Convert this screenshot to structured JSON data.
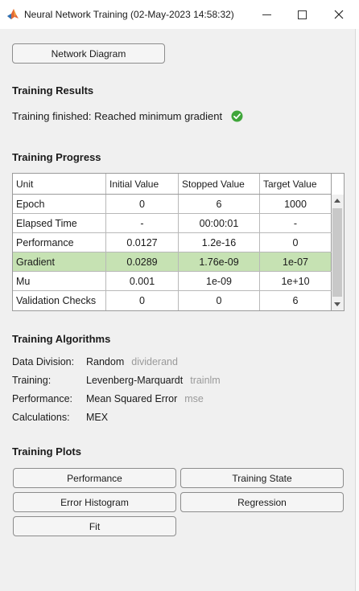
{
  "window": {
    "title": "Neural Network Training (02-May-2023 14:58:32)"
  },
  "network_diagram_button": "Network Diagram",
  "results": {
    "heading": "Training Results",
    "status": "Training finished: Reached minimum gradient",
    "status_icon": "check-circle-icon"
  },
  "progress": {
    "heading": "Training Progress",
    "columns": [
      "Unit",
      "Initial Value",
      "Stopped Value",
      "Target Value"
    ],
    "rows": [
      [
        "Epoch",
        "0",
        "6",
        "1000"
      ],
      [
        "Elapsed Time",
        "-",
        "00:00:01",
        "-"
      ],
      [
        "Performance",
        "0.0127",
        "1.2e-16",
        "0"
      ],
      [
        "Gradient",
        "0.0289",
        "1.76e-09",
        "1e-07"
      ],
      [
        "Mu",
        "0.001",
        "1e-09",
        "1e+10"
      ],
      [
        "Validation Checks",
        "0",
        "0",
        "6"
      ]
    ],
    "highlight_color": "#c6e2b3"
  },
  "algorithms": {
    "heading": "Training Algorithms",
    "items": [
      {
        "label": "Data Division:",
        "value": "Random",
        "fn": "dividerand"
      },
      {
        "label": "Training:",
        "value": "Levenberg-Marquardt",
        "fn": "trainlm"
      },
      {
        "label": "Performance:",
        "value": "Mean Squared Error",
        "fn": "mse"
      },
      {
        "label": "Calculations:",
        "value": "MEX",
        "fn": ""
      }
    ]
  },
  "plots": {
    "heading": "Training Plots",
    "buttons": [
      "Performance",
      "Training State",
      "Error Histogram",
      "Regression",
      "Fit"
    ]
  }
}
